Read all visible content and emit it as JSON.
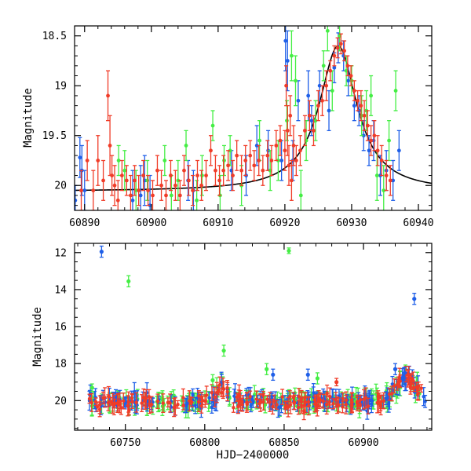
{
  "colors": {
    "blue": "#1f5fe8",
    "green": "#44ee44",
    "red": "#f03c28",
    "model": "#000000"
  },
  "chart_data": [
    {
      "type": "scatter",
      "title": "",
      "xlabel": "",
      "ylabel": "Magnitude",
      "xlim": [
        60888.5,
        60942
      ],
      "ylim": [
        20.25,
        18.4
      ],
      "y_inverted": true,
      "x_ticks": [
        "60890",
        "60900",
        "60910",
        "60920",
        "60930",
        "60940"
      ],
      "y_ticks": [
        "18.5",
        "19",
        "19.5",
        "20"
      ],
      "series": [
        {
          "color": "blue",
          "points": [
            [
              60888.6,
              20.15,
              0.15
            ],
            [
              60889.3,
              19.72,
              0.2
            ],
            [
              60889.6,
              19.85,
              0.25
            ],
            [
              60890.0,
              20.05,
              0.2
            ],
            [
              60897.2,
              20.15,
              0.3
            ],
            [
              60898.4,
              20.1,
              0.3
            ],
            [
              60899.0,
              19.95,
              0.25
            ],
            [
              60899.8,
              20.2,
              0.3
            ],
            [
              60905.5,
              19.95,
              0.2
            ],
            [
              60906.3,
              20.05,
              0.2
            ],
            [
              60912.0,
              19.85,
              0.2
            ],
            [
              60914.2,
              19.9,
              0.2
            ],
            [
              60915.8,
              19.6,
              0.2
            ],
            [
              60917.5,
              19.65,
              0.2
            ],
            [
              60919.5,
              19.75,
              0.2
            ],
            [
              60920.1,
              18.55,
              0.3
            ],
            [
              60920.4,
              18.75,
              0.3
            ],
            [
              60921.2,
              19.75,
              0.2
            ],
            [
              60922.0,
              19.15,
              0.2
            ],
            [
              60923.5,
              19.1,
              0.25
            ],
            [
              60924.0,
              19.35,
              0.15
            ],
            [
              60925.2,
              19.0,
              0.15
            ],
            [
              60926.6,
              19.25,
              0.2
            ],
            [
              60927.4,
              18.82,
              0.15
            ],
            [
              60928.0,
              18.62,
              0.15
            ],
            [
              60928.8,
              18.7,
              0.15
            ],
            [
              60929.5,
              18.95,
              0.15
            ],
            [
              60930.4,
              19.2,
              0.15
            ],
            [
              60931.1,
              19.25,
              0.15
            ],
            [
              60931.8,
              19.5,
              0.15
            ],
            [
              60932.6,
              19.65,
              0.15
            ],
            [
              60933.3,
              19.55,
              0.2
            ],
            [
              60934.3,
              19.9,
              0.2
            ],
            [
              60935.2,
              19.85,
              0.2
            ],
            [
              60936.2,
              19.95,
              0.2
            ],
            [
              60937.1,
              19.65,
              0.2
            ]
          ]
        },
        {
          "color": "green",
          "points": [
            [
              60895.1,
              19.75,
              0.15
            ],
            [
              60896.0,
              19.85,
              0.2
            ],
            [
              60897.7,
              20.05,
              0.2
            ],
            [
              60899.4,
              19.95,
              0.2
            ],
            [
              60902.0,
              19.75,
              0.15
            ],
            [
              60903.0,
              20.1,
              0.2
            ],
            [
              60904.0,
              19.95,
              0.2
            ],
            [
              60905.2,
              19.6,
              0.15
            ],
            [
              60906.8,
              20.15,
              0.2
            ],
            [
              60907.6,
              19.9,
              0.2
            ],
            [
              60909.2,
              19.4,
              0.15
            ],
            [
              60910.3,
              20.1,
              0.2
            ],
            [
              60910.9,
              19.75,
              0.15
            ],
            [
              60911.8,
              19.65,
              0.15
            ],
            [
              60913.5,
              20.0,
              0.2
            ],
            [
              60916.2,
              19.55,
              0.2
            ],
            [
              60917.8,
              19.85,
              0.2
            ],
            [
              60919.0,
              19.75,
              0.2
            ],
            [
              60920.3,
              19.35,
              0.2
            ],
            [
              60921.0,
              18.7,
              0.25
            ],
            [
              60921.6,
              18.95,
              0.25
            ],
            [
              60922.4,
              20.1,
              0.25
            ],
            [
              60923.2,
              19.55,
              0.2
            ],
            [
              60924.6,
              19.35,
              0.2
            ],
            [
              60925.8,
              18.8,
              0.15
            ],
            [
              60926.4,
              18.45,
              0.2
            ],
            [
              60927.1,
              19.05,
              0.2
            ],
            [
              60928.2,
              18.5,
              0.15
            ],
            [
              60929.2,
              18.85,
              0.15
            ],
            [
              60930.0,
              18.95,
              0.15
            ],
            [
              60931.5,
              19.3,
              0.2
            ],
            [
              60932.2,
              19.25,
              0.2
            ],
            [
              60932.9,
              19.1,
              0.2
            ],
            [
              60933.8,
              19.9,
              0.25
            ],
            [
              60934.8,
              20.05,
              0.25
            ],
            [
              60935.6,
              19.55,
              0.2
            ],
            [
              60936.6,
              19.05,
              0.2
            ]
          ]
        },
        {
          "color": "red",
          "points": [
            [
              60889.5,
              20.05,
              0.2
            ],
            [
              60890.4,
              19.75,
              0.2
            ],
            [
              60891.3,
              20.05,
              0.2
            ],
            [
              60892.0,
              19.75,
              0.25
            ],
            [
              60892.8,
              19.95,
              0.2
            ],
            [
              60893.5,
              19.1,
              0.25
            ],
            [
              60893.8,
              19.6,
              0.3
            ],
            [
              60894.1,
              19.9,
              0.2
            ],
            [
              60894.5,
              20.0,
              0.2
            ],
            [
              60895.0,
              20.15,
              0.2
            ],
            [
              60895.6,
              19.9,
              0.15
            ],
            [
              60896.3,
              19.95,
              0.15
            ],
            [
              60896.9,
              20.1,
              0.2
            ],
            [
              60897.5,
              19.95,
              0.15
            ],
            [
              60898.1,
              20.05,
              0.15
            ],
            [
              60898.8,
              19.9,
              0.15
            ],
            [
              60899.5,
              20.05,
              0.15
            ],
            [
              60900.2,
              20.1,
              0.15
            ],
            [
              60900.9,
              19.85,
              0.15
            ],
            [
              60901.5,
              20.0,
              0.15
            ],
            [
              60902.2,
              20.1,
              0.15
            ],
            [
              60902.9,
              19.9,
              0.15
            ],
            [
              60903.6,
              20.0,
              0.15
            ],
            [
              60904.3,
              20.1,
              0.15
            ],
            [
              60904.9,
              19.85,
              0.15
            ],
            [
              60905.6,
              19.95,
              0.15
            ],
            [
              60906.2,
              20.05,
              0.15
            ],
            [
              60906.9,
              19.9,
              0.15
            ],
            [
              60907.5,
              20.0,
              0.15
            ],
            [
              60908.2,
              19.9,
              0.15
            ],
            [
              60908.9,
              19.65,
              0.15
            ],
            [
              60909.6,
              19.85,
              0.15
            ],
            [
              60910.2,
              19.95,
              0.15
            ],
            [
              60910.8,
              19.85,
              0.15
            ],
            [
              60911.5,
              19.8,
              0.15
            ],
            [
              60912.2,
              19.9,
              0.15
            ],
            [
              60912.8,
              19.7,
              0.15
            ],
            [
              60913.5,
              19.85,
              0.15
            ],
            [
              60914.1,
              19.75,
              0.15
            ],
            [
              60914.8,
              19.7,
              0.15
            ],
            [
              60915.4,
              19.8,
              0.15
            ],
            [
              60916.1,
              19.75,
              0.15
            ],
            [
              60916.7,
              19.85,
              0.15
            ],
            [
              60917.4,
              19.7,
              0.15
            ],
            [
              60918.0,
              19.75,
              0.15
            ],
            [
              60918.7,
              19.6,
              0.15
            ],
            [
              60919.3,
              19.55,
              0.15
            ],
            [
              60920.0,
              19.65,
              0.2
            ],
            [
              60920.2,
              19.0,
              0.2
            ],
            [
              60920.4,
              19.45,
              0.25
            ],
            [
              60920.6,
              19.8,
              0.2
            ],
            [
              60920.8,
              19.3,
              0.2
            ],
            [
              60921.0,
              19.95,
              0.2
            ],
            [
              60921.3,
              19.6,
              0.2
            ],
            [
              60921.7,
              19.75,
              0.15
            ],
            [
              60922.3,
              19.65,
              0.15
            ],
            [
              60923.0,
              19.45,
              0.15
            ],
            [
              60923.7,
              19.3,
              0.15
            ],
            [
              60924.3,
              19.45,
              0.15
            ],
            [
              60925.0,
              19.2,
              0.15
            ],
            [
              60925.6,
              19.15,
              0.15
            ],
            [
              60926.2,
              19.0,
              0.15
            ],
            [
              60926.8,
              18.85,
              0.1
            ],
            [
              60927.4,
              18.7,
              0.1
            ],
            [
              60927.9,
              18.62,
              0.1
            ],
            [
              60928.4,
              18.58,
              0.1
            ],
            [
              60928.9,
              18.65,
              0.1
            ],
            [
              60929.4,
              18.8,
              0.1
            ],
            [
              60929.9,
              18.9,
              0.1
            ],
            [
              60930.4,
              19.05,
              0.1
            ],
            [
              60930.9,
              19.15,
              0.1
            ],
            [
              60931.4,
              19.2,
              0.15
            ],
            [
              60931.9,
              19.3,
              0.15
            ],
            [
              60932.4,
              19.4,
              0.15
            ],
            [
              60932.9,
              19.55,
              0.15
            ],
            [
              60933.4,
              19.5,
              0.15
            ],
            [
              60933.9,
              19.65,
              0.15
            ],
            [
              60934.5,
              19.75,
              0.15
            ],
            [
              60935.2,
              19.9,
              0.15
            ],
            [
              60935.8,
              19.95,
              0.15
            ]
          ]
        }
      ],
      "model_curve": {
        "color": "model",
        "baseline": 20.06,
        "peak_time": 60928.0,
        "peak_mag": 18.6,
        "rise_scale": 3.5,
        "decline_scale": 3.4,
        "x_range": [
          60888.5,
          60942
        ]
      }
    },
    {
      "type": "scatter",
      "title": "",
      "xlabel": "HJD−2400000",
      "ylabel": "Magnitude",
      "xlim": [
        60718,
        60943
      ],
      "ylim": [
        21.6,
        11.5
      ],
      "y_inverted": true,
      "x_ticks": [
        "60750",
        "60800",
        "60850",
        "60900"
      ],
      "y_ticks": [
        "12",
        "14",
        "16",
        "18",
        "20"
      ],
      "outliers": [
        {
          "color": "blue",
          "x": 60735,
          "y": 11.95,
          "err": 0.3
        },
        {
          "color": "green",
          "x": 60752,
          "y": 13.55,
          "err": 0.3
        },
        {
          "color": "green",
          "x": 60853,
          "y": 11.9,
          "err": 0.15
        },
        {
          "color": "blue",
          "x": 60932,
          "y": 14.5,
          "err": 0.3
        },
        {
          "color": "green",
          "x": 60812,
          "y": 17.3,
          "err": 0.3
        },
        {
          "color": "green",
          "x": 60839,
          "y": 18.3,
          "err": 0.3
        },
        {
          "color": "blue",
          "x": 60843,
          "y": 18.6,
          "err": 0.3
        },
        {
          "color": "blue",
          "x": 60865,
          "y": 18.6,
          "err": 0.3
        },
        {
          "color": "green",
          "x": 60871,
          "y": 18.8,
          "err": 0.3
        },
        {
          "color": "blue",
          "x": 60920,
          "y": 18.3,
          "err": 0.3
        },
        {
          "color": "blue",
          "x": 60926,
          "y": 18.5,
          "err": 0.3
        },
        {
          "color": "green",
          "x": 60729,
          "y": 19.3,
          "err": 0.2
        },
        {
          "color": "green",
          "x": 60805,
          "y": 18.9,
          "err": 0.3
        },
        {
          "color": "red",
          "x": 60883,
          "y": 19.0,
          "err": 0.2
        }
      ],
      "band": {
        "x_range": [
          60727,
          60939
        ],
        "baseline": 20.05,
        "scatter": 0.35,
        "bumps": [
          {
            "center": 60811,
            "mag": 19.2,
            "width": 3
          },
          {
            "center": 60927,
            "mag": 18.7,
            "width": 6
          }
        ],
        "points_per_series": 170
      }
    }
  ]
}
